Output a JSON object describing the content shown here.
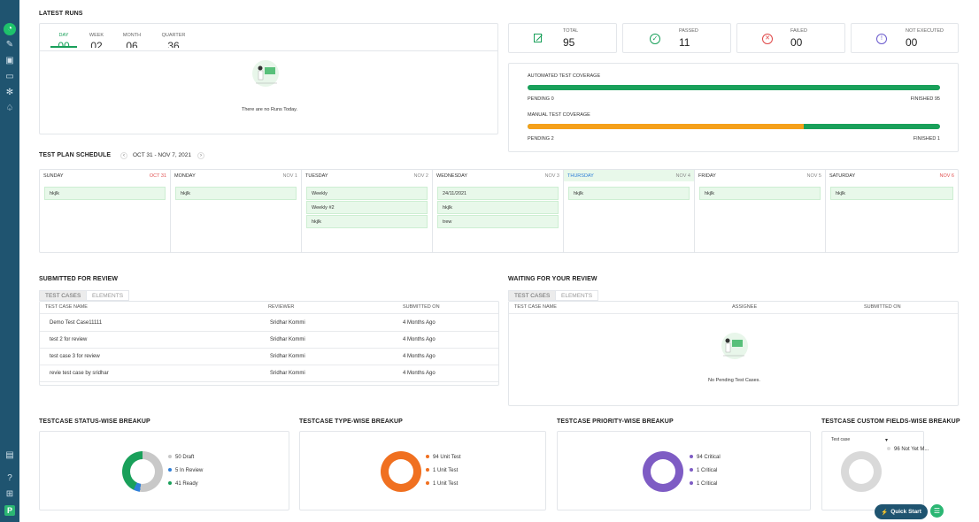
{
  "sidebar": {
    "icons": [
      "dashboard-icon",
      "edit-icon",
      "briefcase-icon",
      "monitor-icon",
      "settings-icon",
      "bell-icon"
    ],
    "bottom_icons": [
      "document-icon",
      "help-icon",
      "gift-icon"
    ],
    "project_badge": "P"
  },
  "latest_runs": {
    "title": "LATEST RUNS",
    "tabs": [
      {
        "label": "DAY",
        "value": "00"
      },
      {
        "label": "WEEK",
        "value": "02"
      },
      {
        "label": "MONTH",
        "value": "06"
      },
      {
        "label": "QUARTER",
        "value": "36"
      }
    ],
    "empty_text": "There are no Runs Today."
  },
  "stats": [
    {
      "label": "TOTAL",
      "value": "95",
      "icon": "edit-doc-icon"
    },
    {
      "label": "PASSED",
      "value": "11",
      "icon": "check-circle-icon"
    },
    {
      "label": "FAILED",
      "value": "00",
      "icon": "x-circle-icon"
    },
    {
      "label": "NOT EXECUTED",
      "value": "00",
      "icon": "info-circle-icon"
    }
  ],
  "coverage": {
    "automated": {
      "label": "AUTOMATED TEST COVERAGE",
      "pending": "PENDING 0",
      "finished": "FINISHED 95",
      "finished_fraction": 1.0
    },
    "manual": {
      "label": "MANUAL TEST COVERAGE",
      "pending": "PENDING 2",
      "finished": "FINISHED 1",
      "pending_fraction": 0.67
    }
  },
  "schedule": {
    "title": "TEST PLAN SCHEDULE",
    "range": "OCT 31 - NOV 7, 2021",
    "prev": "‹",
    "next": "›",
    "days": [
      {
        "name": "SUNDAY",
        "date": "OCT 31",
        "events": [
          "hkjlk"
        ]
      },
      {
        "name": "MONDAY",
        "date": "NOV 1",
        "events": [
          "hkjlk"
        ]
      },
      {
        "name": "TUESDAY",
        "date": "NOV 2",
        "events": [
          "Weekly",
          "Weekly #2",
          "hkjlk"
        ]
      },
      {
        "name": "WEDNESDAY",
        "date": "NOV 3",
        "events": [
          "24/11/2021",
          "hkjlk",
          "trew"
        ]
      },
      {
        "name": "THURSDAY",
        "date": "NOV 4",
        "events": [
          "hkjlk"
        ]
      },
      {
        "name": "FRIDAY",
        "date": "NOV 5",
        "events": [
          "hkjlk"
        ]
      },
      {
        "name": "SATURDAY",
        "date": "NOV 6",
        "events": [
          "hkjlk"
        ]
      }
    ]
  },
  "submitted_review": {
    "title": "SUBMITTED FOR REVIEW",
    "tabs": [
      "TEST CASES",
      "ELEMENTS"
    ],
    "columns": [
      "TEST CASE NAME",
      "REVIEWER",
      "SUBMITTED ON"
    ],
    "rows": [
      [
        "Demo Test Case11111",
        "Sridhar Kommi",
        "4 Months Ago"
      ],
      [
        "test 2 for review",
        "Sridhar Kommi",
        "4 Months Ago"
      ],
      [
        "test case 3 for review",
        "Sridhar Kommi",
        "4 Months Ago"
      ],
      [
        "revie test case by sridhar",
        "Sridhar Kommi",
        "4 Months Ago"
      ]
    ]
  },
  "waiting_review": {
    "title": "WAITING FOR YOUR REVIEW",
    "tabs": [
      "TEST CASES",
      "ELEMENTS"
    ],
    "columns": [
      "TEST CASE NAME",
      "ASSIGNEE",
      "SUBMITTED ON"
    ],
    "empty_text": "No Pending Test Cases."
  },
  "breakups": [
    {
      "title": "TESTCASE STATUS-WISE BREAKUP",
      "legend": [
        {
          "text": "50  Draft",
          "value": 50,
          "color": "#c8c8c8"
        },
        {
          "text": "5  In Review",
          "value": 5,
          "color": "#2f7fd8"
        },
        {
          "text": "41  Ready",
          "value": 41,
          "color": "#19a05a"
        }
      ]
    },
    {
      "title": "TESTCASE TYPE-WISE BREAKUP",
      "legend": [
        {
          "text": "94  Unit Test",
          "value": 94,
          "color": "#f07020"
        },
        {
          "text": "1  Unit Test",
          "value": 1,
          "color": "#f07020"
        },
        {
          "text": "1  Unit Test",
          "value": 1,
          "color": "#f07020"
        }
      ]
    },
    {
      "title": "TESTCASE PRIORITY-WISE BREAKUP",
      "legend": [
        {
          "text": "94  Critical",
          "value": 94,
          "color": "#7e5cc4"
        },
        {
          "text": "1  Critical",
          "value": 1,
          "color": "#7e5cc4"
        },
        {
          "text": "1  Critical",
          "value": 1,
          "color": "#7e5cc4"
        }
      ]
    },
    {
      "title": "TESTCASE CUSTOM FIELDS-WISE BREAKUP",
      "select": "Test case",
      "legend": [
        {
          "text": "96  Not Yet M...",
          "value": 96,
          "color": "#d9d9d9"
        }
      ]
    }
  ],
  "quick_start": "Quick Start"
}
